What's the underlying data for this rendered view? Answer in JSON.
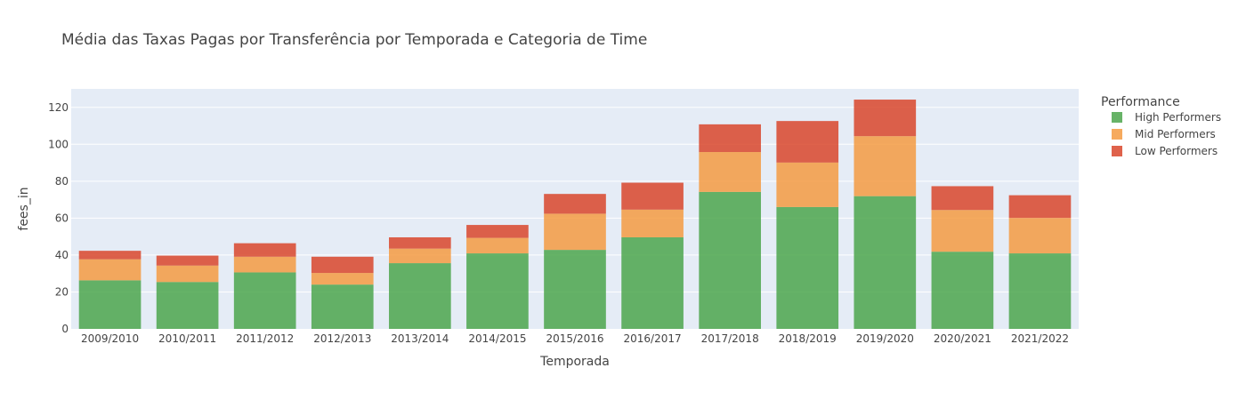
{
  "chart_data": {
    "type": "bar",
    "stacked": true,
    "title": "Média das Taxas Pagas por Transferência por Temporada e Categoria de Time",
    "xlabel": "Temporada",
    "ylabel": "fees_in",
    "categories": [
      "2009/2010",
      "2010/2011",
      "2011/2012",
      "2012/2013",
      "2013/2014",
      "2014/2015",
      "2015/2016",
      "2016/2017",
      "2017/2018",
      "2018/2019",
      "2019/2020",
      "2020/2021",
      "2021/2022"
    ],
    "series": [
      {
        "name": "High Performers",
        "color": "#4ca64c",
        "values": [
          26.3,
          25.4,
          30.6,
          24.0,
          35.6,
          40.9,
          42.8,
          49.6,
          74.2,
          66.0,
          71.9,
          41.8,
          40.9
        ]
      },
      {
        "name": "Mid Performers",
        "color": "#f59b42",
        "values": [
          11.4,
          8.9,
          8.5,
          6.3,
          7.9,
          8.4,
          19.6,
          15.0,
          21.6,
          24.1,
          32.5,
          22.6,
          19.2
        ]
      },
      {
        "name": "Low Performers",
        "color": "#d9472b",
        "values": [
          4.6,
          5.4,
          7.3,
          8.8,
          6.1,
          7.0,
          10.7,
          14.6,
          15.0,
          22.5,
          19.8,
          12.9,
          12.3
        ]
      }
    ],
    "ylim": [
      0,
      130
    ],
    "yticks": [
      0,
      20,
      40,
      60,
      80,
      100,
      120
    ],
    "grid": true,
    "legend": {
      "title": "Performance",
      "position": "right"
    }
  }
}
